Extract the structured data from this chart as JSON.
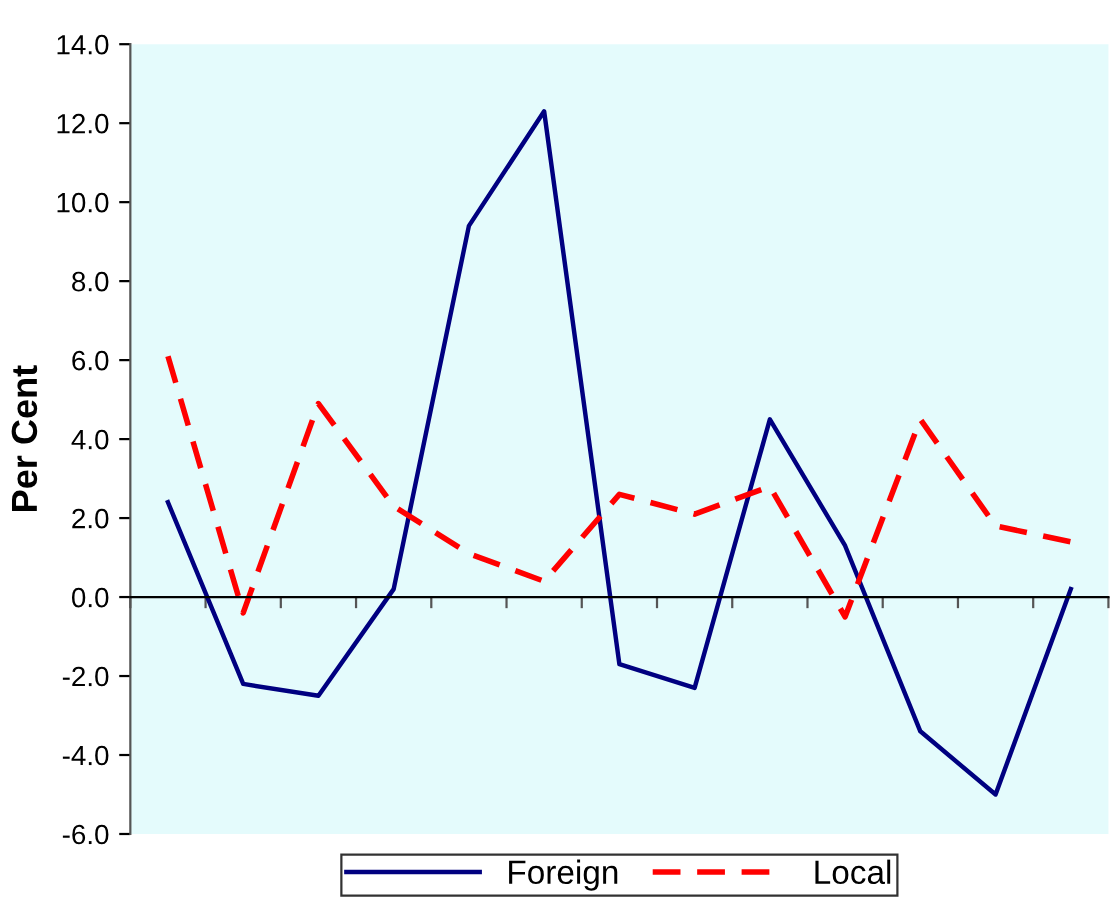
{
  "chart_data": {
    "type": "line",
    "ylabel": "Per Cent",
    "categories": [
      null,
      null,
      null,
      null,
      null,
      null,
      null,
      null,
      null,
      null,
      null,
      null,
      null
    ],
    "series": [
      {
        "name": "Foreign",
        "color": "#000080",
        "line_style": "solid",
        "values": [
          2.4,
          -2.2,
          -2.5,
          0.2,
          9.4,
          12.3,
          -1.7,
          -2.3,
          4.5,
          1.3,
          -3.4,
          -5.0,
          0.2
        ]
      },
      {
        "name": "Local",
        "color": "#ff0000",
        "line_style": "dashed",
        "values": [
          6.1,
          -0.4,
          4.9,
          2.3,
          1.1,
          0.4,
          2.6,
          2.1,
          2.8,
          -0.5,
          4.5,
          1.8,
          1.4
        ]
      }
    ],
    "ylim": [
      -6,
      14
    ],
    "yticks": [
      {
        "value": -6,
        "label": "-6.0"
      },
      {
        "value": -4,
        "label": "-4.0"
      },
      {
        "value": -2,
        "label": "-2.0"
      },
      {
        "value": 0,
        "label": "0.0"
      },
      {
        "value": 2,
        "label": "2.0"
      },
      {
        "value": 4,
        "label": "4.0"
      },
      {
        "value": 6,
        "label": "6.0"
      },
      {
        "value": 8,
        "label": "8.0"
      },
      {
        "value": 10,
        "label": "10.0"
      },
      {
        "value": 12,
        "label": "12.0"
      },
      {
        "value": 14,
        "label": "14.0"
      }
    ],
    "legend": "bottom",
    "marker": "none"
  }
}
